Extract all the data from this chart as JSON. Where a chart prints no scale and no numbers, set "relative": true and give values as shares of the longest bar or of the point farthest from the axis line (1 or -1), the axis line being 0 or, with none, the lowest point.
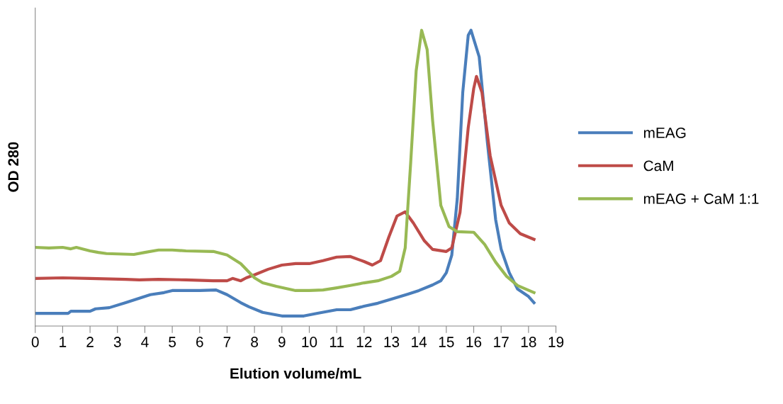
{
  "chart_data": {
    "type": "line",
    "relative": true,
    "xlabel": "Elution volume/mL",
    "ylabel": "OD 280",
    "xlim": [
      0,
      19
    ],
    "xticks": [
      0,
      1,
      2,
      3,
      4,
      5,
      6,
      7,
      8,
      9,
      10,
      11,
      12,
      13,
      14,
      15,
      16,
      17,
      18,
      19
    ],
    "grid": false,
    "legend": "right",
    "marker": "none",
    "line_style": "solid",
    "tick_labels": "x",
    "series": [
      {
        "name": "mEAG",
        "color": "#4a7ebb",
        "x": [
          0,
          1.2,
          1.3,
          2.0,
          2.2,
          2.7,
          3.3,
          3.8,
          4.2,
          4.7,
          5.0,
          6.0,
          6.6,
          7.0,
          7.5,
          7.8,
          8.3,
          9.0,
          9.8,
          10.3,
          11.0,
          11.5,
          12.0,
          12.5,
          13.0,
          13.6,
          14.0,
          14.5,
          14.8,
          15.0,
          15.2,
          15.4,
          15.6,
          15.8,
          15.9,
          16.2,
          16.5,
          16.8,
          17.0,
          17.3,
          17.6,
          18.0,
          18.2
        ],
        "values": [
          0.043,
          0.043,
          0.05,
          0.05,
          0.058,
          0.062,
          0.079,
          0.094,
          0.106,
          0.113,
          0.12,
          0.12,
          0.122,
          0.106,
          0.079,
          0.065,
          0.046,
          0.034,
          0.034,
          0.043,
          0.055,
          0.055,
          0.067,
          0.077,
          0.091,
          0.108,
          0.12,
          0.139,
          0.153,
          0.18,
          0.24,
          0.43,
          0.79,
          0.983,
          1.0,
          0.91,
          0.62,
          0.36,
          0.26,
          0.18,
          0.125,
          0.1,
          0.079
        ]
      },
      {
        "name": "CaM",
        "color": "#be4b48",
        "x": [
          0,
          1.0,
          2.0,
          3.3,
          3.8,
          4.5,
          5.5,
          6.5,
          7.0,
          7.2,
          7.5,
          7.7,
          8.0,
          8.5,
          9.0,
          9.5,
          10.0,
          10.5,
          11.0,
          11.5,
          12.0,
          12.3,
          12.6,
          12.9,
          13.2,
          13.5,
          13.8,
          14.2,
          14.5,
          15.0,
          15.2,
          15.5,
          15.8,
          16.0,
          16.1,
          16.3,
          16.6,
          17.0,
          17.3,
          17.7,
          18.2
        ],
        "values": [
          0.161,
          0.163,
          0.161,
          0.158,
          0.156,
          0.158,
          0.156,
          0.153,
          0.153,
          0.161,
          0.153,
          0.163,
          0.173,
          0.192,
          0.206,
          0.211,
          0.211,
          0.221,
          0.233,
          0.235,
          0.218,
          0.206,
          0.221,
          0.3,
          0.372,
          0.386,
          0.348,
          0.288,
          0.259,
          0.252,
          0.264,
          0.384,
          0.671,
          0.803,
          0.844,
          0.79,
          0.576,
          0.408,
          0.348,
          0.312,
          0.293
        ]
      },
      {
        "name": "mEAG + CaM 1:1",
        "color": "#98b954",
        "x": [
          0,
          0.5,
          1.0,
          1.3,
          1.5,
          2.0,
          2.3,
          2.6,
          3.6,
          4.0,
          4.5,
          5.0,
          5.5,
          6.5,
          7.0,
          7.5,
          8.0,
          8.3,
          8.8,
          9.5,
          10.0,
          10.5,
          11.0,
          11.5,
          12.0,
          12.5,
          13.0,
          13.3,
          13.5,
          13.7,
          13.9,
          14.1,
          14.3,
          14.5,
          14.8,
          15.1,
          15.4,
          16.0,
          16.4,
          16.8,
          17.2,
          17.6,
          18.2
        ],
        "values": [
          0.266,
          0.264,
          0.266,
          0.261,
          0.266,
          0.254,
          0.249,
          0.245,
          0.242,
          0.249,
          0.257,
          0.257,
          0.254,
          0.252,
          0.24,
          0.211,
          0.163,
          0.146,
          0.134,
          0.12,
          0.12,
          0.122,
          0.129,
          0.137,
          0.146,
          0.153,
          0.168,
          0.185,
          0.264,
          0.552,
          0.863,
          1.0,
          0.935,
          0.695,
          0.408,
          0.336,
          0.319,
          0.317,
          0.276,
          0.216,
          0.168,
          0.137,
          0.113
        ]
      }
    ]
  }
}
